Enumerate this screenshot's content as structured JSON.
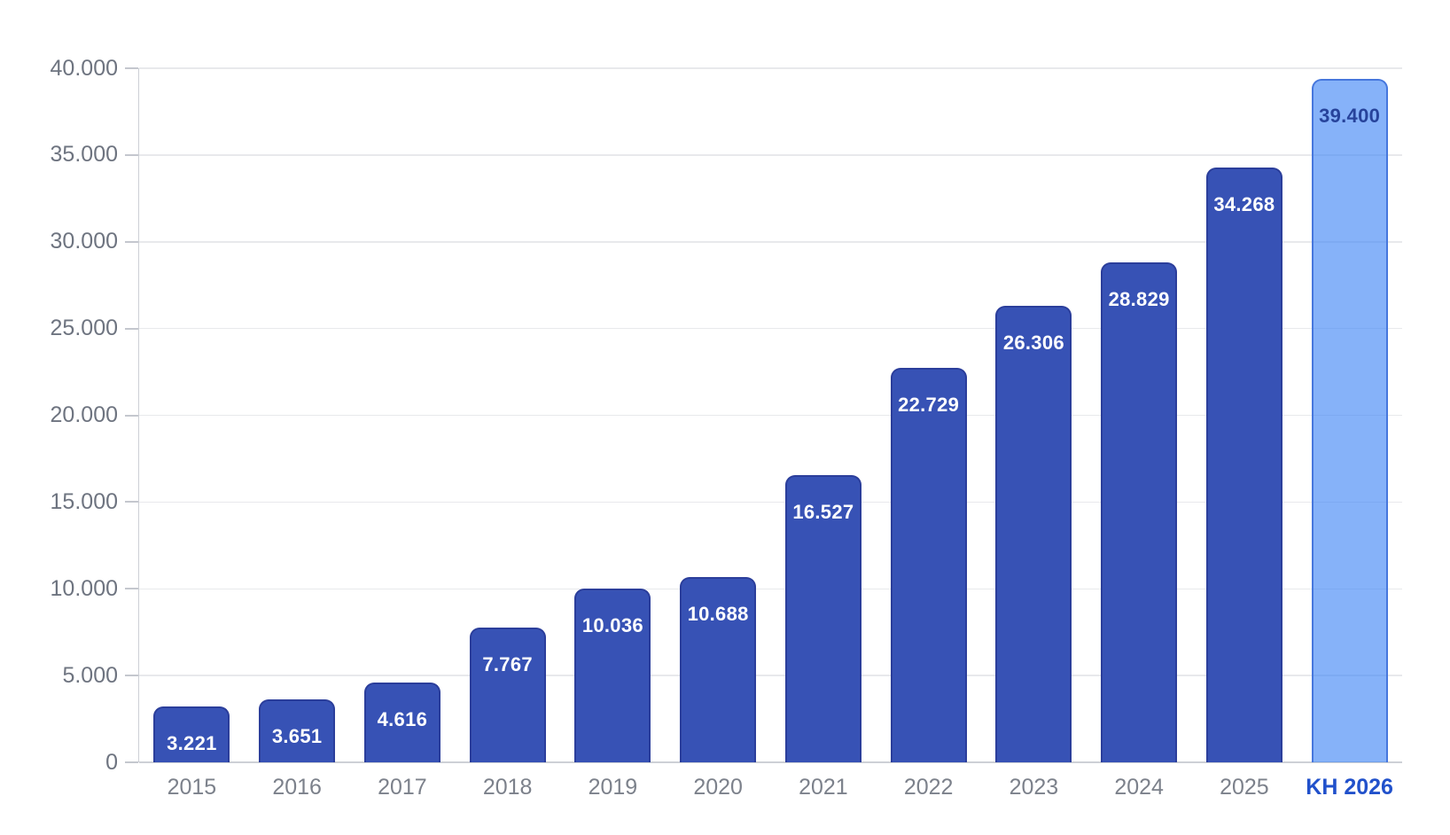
{
  "chart_data": {
    "type": "bar",
    "title": "",
    "xlabel": "",
    "ylabel": "",
    "categories": [
      "2015",
      "2016",
      "2017",
      "2018",
      "2019",
      "2020",
      "2021",
      "2022",
      "2023",
      "2024",
      "2025",
      "KH 2026"
    ],
    "values": [
      3221,
      3651,
      4616,
      7767,
      10036,
      10688,
      16527,
      22729,
      26306,
      28829,
      34268,
      39400
    ],
    "value_labels": [
      "3.221",
      "3.651",
      "4.616",
      "7.767",
      "10.036",
      "10.688",
      "16.527",
      "22.729",
      "26.306",
      "28.829",
      "34.268",
      "39.400"
    ],
    "highlight_index": 11,
    "ylim": [
      0,
      40000
    ],
    "ytick_step": 5000,
    "ytick_labels": [
      "0",
      "5.000",
      "10.000",
      "15.000",
      "20.000",
      "25.000",
      "30.000",
      "35.000",
      "40.000"
    ],
    "grid": true,
    "legend": null,
    "colors": {
      "bar_fill": "#3752b5",
      "bar_border": "#2b3e9b",
      "bar_value_text": "#ffffff",
      "highlight_fill": "rgba(59,130,246,0.62)",
      "highlight_border": "#4677dd",
      "highlight_value_text": "#27439b",
      "highlight_x_label": "#2151cb",
      "y_label_text": "#6e7480",
      "x_label_text": "#7c818b",
      "gridline": "#e8e9ec",
      "axis_line": "#cdd0d6",
      "tick": "#c4c7ce",
      "background": "#ffffff"
    }
  }
}
